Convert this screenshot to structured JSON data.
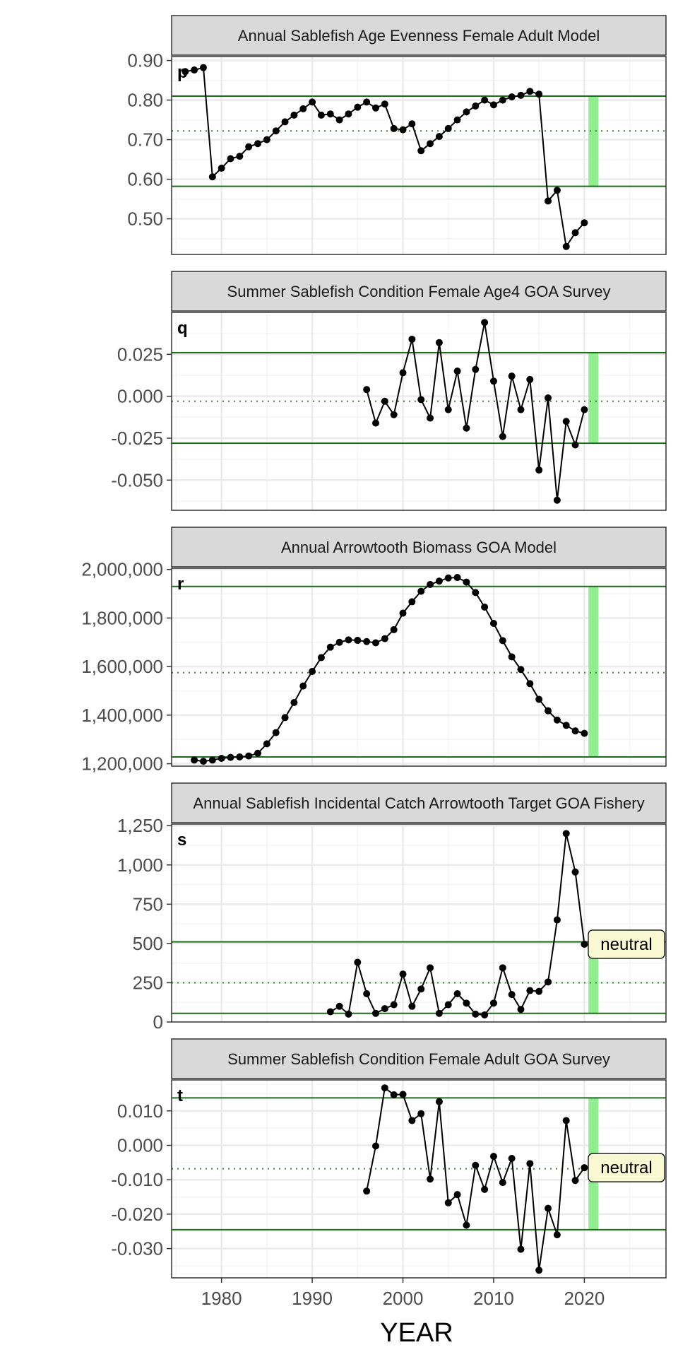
{
  "figure": {
    "xlabel": "YEAR"
  },
  "chart_data": [
    {
      "type": "line",
      "title": "Annual Sablefish Age Evenness Female Adult Model",
      "tag": "p",
      "xlim": [
        1974.5,
        2029
      ],
      "xticks": [
        1980,
        1990,
        2000,
        2010,
        2020
      ],
      "ylim": [
        0.41,
        0.91
      ],
      "yticks": [
        0.5,
        0.6,
        0.7,
        0.8,
        0.9
      ],
      "ytick_labels": [
        "0.50",
        "0.60",
        "0.70",
        "0.80",
        "0.90"
      ],
      "hlines": {
        "upper": 0.81,
        "mean": 0.722,
        "lower": 0.582
      },
      "highlight_year": 2021,
      "highlight_range": [
        0.582,
        0.81
      ],
      "badge": "",
      "x": [
        1976,
        1977,
        1978,
        1979,
        1980,
        1981,
        1982,
        1983,
        1984,
        1985,
        1986,
        1987,
        1988,
        1989,
        1990,
        1991,
        1992,
        1993,
        1994,
        1995,
        1996,
        1997,
        1998,
        1999,
        2000,
        2001,
        2002,
        2003,
        2004,
        2005,
        2006,
        2007,
        2008,
        2009,
        2010,
        2011,
        2012,
        2013,
        2014,
        2015,
        2016,
        2017,
        2018,
        2019,
        2020
      ],
      "y": [
        0.872,
        0.876,
        0.882,
        0.606,
        0.628,
        0.652,
        0.658,
        0.682,
        0.69,
        0.7,
        0.722,
        0.745,
        0.762,
        0.778,
        0.795,
        0.762,
        0.765,
        0.75,
        0.765,
        0.782,
        0.795,
        0.78,
        0.79,
        0.728,
        0.725,
        0.74,
        0.672,
        0.69,
        0.708,
        0.728,
        0.75,
        0.77,
        0.785,
        0.8,
        0.788,
        0.8,
        0.808,
        0.812,
        0.822,
        0.815,
        0.545,
        0.572,
        0.43,
        0.465,
        0.49
      ]
    },
    {
      "type": "line",
      "title": "Summer Sablefish Condition Female Age4 GOA Survey",
      "tag": "q",
      "xlim": [
        1974.5,
        2029
      ],
      "xticks": [
        1980,
        1990,
        2000,
        2010,
        2020
      ],
      "ylim": [
        -0.068,
        0.05
      ],
      "yticks": [
        -0.05,
        -0.025,
        0,
        0.025
      ],
      "ytick_labels": [
        "-0.050",
        "-0.025",
        "0.000",
        "0.025"
      ],
      "hlines": {
        "upper": 0.026,
        "mean": -0.003,
        "lower": -0.028
      },
      "highlight_year": 2021,
      "highlight_range": [
        -0.028,
        0.026
      ],
      "badge": "",
      "x": [
        1996,
        1997,
        1998,
        1999,
        2000,
        2001,
        2002,
        2003,
        2004,
        2005,
        2006,
        2007,
        2008,
        2009,
        2010,
        2011,
        2012,
        2013,
        2014,
        2015,
        2016,
        2017,
        2018,
        2019,
        2020
      ],
      "y": [
        0.004,
        -0.016,
        -0.003,
        -0.011,
        0.014,
        0.034,
        -0.002,
        -0.013,
        0.032,
        -0.008,
        0.015,
        -0.019,
        0.016,
        0.044,
        0.009,
        -0.024,
        0.012,
        -0.008,
        0.01,
        -0.044,
        -0.001,
        -0.062,
        -0.015,
        -0.029,
        -0.008
      ]
    },
    {
      "type": "line",
      "title": "Annual Arrowtooth Biomass GOA Model",
      "tag": "r",
      "xlim": [
        1974.5,
        2029
      ],
      "xticks": [
        1980,
        1990,
        2000,
        2010,
        2020
      ],
      "ylim": [
        1190000,
        2005000
      ],
      "yticks": [
        1200000,
        1400000,
        1600000,
        1800000,
        2000000
      ],
      "ytick_labels": [
        "1,200,000",
        "1,400,000",
        "1,600,000",
        "1,800,000",
        "2,000,000"
      ],
      "hlines": {
        "upper": 1930000,
        "mean": 1575000,
        "lower": 1228000
      },
      "highlight_year": 2021,
      "highlight_range": [
        1228000,
        1930000
      ],
      "badge": "",
      "x": [
        1977,
        1978,
        1979,
        1980,
        1981,
        1982,
        1983,
        1984,
        1985,
        1986,
        1987,
        1988,
        1989,
        1990,
        1991,
        1992,
        1993,
        1994,
        1995,
        1996,
        1997,
        1998,
        1999,
        2000,
        2001,
        2002,
        2003,
        2004,
        2005,
        2006,
        2007,
        2008,
        2009,
        2010,
        2011,
        2012,
        2013,
        2014,
        2015,
        2016,
        2017,
        2018,
        2019,
        2020
      ],
      "y": [
        1215000,
        1210000,
        1215000,
        1222000,
        1226000,
        1228000,
        1232000,
        1243000,
        1282000,
        1328000,
        1390000,
        1452000,
        1520000,
        1580000,
        1637000,
        1680000,
        1700000,
        1710000,
        1708000,
        1703000,
        1698000,
        1715000,
        1752000,
        1820000,
        1867000,
        1910000,
        1938000,
        1952000,
        1965000,
        1967000,
        1948000,
        1905000,
        1845000,
        1778000,
        1707000,
        1640000,
        1588000,
        1530000,
        1465000,
        1418000,
        1380000,
        1358000,
        1335000,
        1325000
      ]
    },
    {
      "type": "line",
      "title": "Annual Sablefish Incidental Catch Arrowtooth Target GOA Fishery",
      "tag": "s",
      "xlim": [
        1974.5,
        2029
      ],
      "xticks": [
        1980,
        1990,
        2000,
        2010,
        2020
      ],
      "ylim": [
        0,
        1260
      ],
      "yticks": [
        0,
        250,
        500,
        750,
        1000,
        1250
      ],
      "ytick_labels": [
        "0",
        "250",
        "500",
        "750",
        "1,000",
        "1,250"
      ],
      "hlines": {
        "upper": 510,
        "mean": 250,
        "lower": 55
      },
      "highlight_year": 2021,
      "highlight_range": [
        55,
        510
      ],
      "badge": "neutral",
      "x": [
        1992,
        1993,
        1994,
        1995,
        1996,
        1997,
        1998,
        1999,
        2000,
        2001,
        2002,
        2003,
        2004,
        2005,
        2006,
        2007,
        2008,
        2009,
        2010,
        2011,
        2012,
        2013,
        2014,
        2015,
        2016,
        2017,
        2018,
        2019,
        2020
      ],
      "y": [
        65,
        100,
        50,
        380,
        180,
        55,
        85,
        110,
        305,
        100,
        210,
        345,
        55,
        110,
        180,
        120,
        50,
        45,
        120,
        345,
        175,
        80,
        200,
        195,
        255,
        650,
        1200,
        955,
        495
      ]
    },
    {
      "type": "line",
      "title": "Summer Sablefish Condition Female Adult GOA Survey",
      "tag": "t",
      "xlim": [
        1974.5,
        2029
      ],
      "xticks": [
        1980,
        1990,
        2000,
        2010,
        2020
      ],
      "ylim": [
        -0.0385,
        0.019
      ],
      "yticks": [
        -0.03,
        -0.02,
        -0.01,
        0,
        0.01
      ],
      "ytick_labels": [
        "-0.030",
        "-0.020",
        "-0.010",
        "0.000",
        "0.010"
      ],
      "hlines": {
        "upper": 0.0138,
        "mean": -0.0068,
        "lower": -0.0245
      },
      "highlight_year": 2021,
      "highlight_range": [
        -0.0245,
        0.0138
      ],
      "badge": "neutral",
      "x": [
        1996,
        1997,
        1998,
        1999,
        2000,
        2001,
        2002,
        2003,
        2004,
        2005,
        2006,
        2007,
        2008,
        2009,
        2010,
        2011,
        2012,
        2013,
        2014,
        2015,
        2016,
        2017,
        2018,
        2019,
        2020
      ],
      "y": [
        -0.0133,
        -0.0002,
        0.0167,
        0.0147,
        0.0148,
        0.0072,
        0.0092,
        -0.0098,
        0.0127,
        -0.0167,
        -0.0143,
        -0.0232,
        -0.0058,
        -0.0128,
        -0.0032,
        -0.0108,
        -0.0038,
        -0.0302,
        -0.0053,
        -0.0363,
        -0.0183,
        -0.026,
        0.0072,
        -0.0102,
        -0.0065
      ]
    }
  ],
  "colors": {
    "line": "#000000",
    "hline": "#1a6e1a",
    "mean_line": "#2e8b2e",
    "highlight": "#90ee90",
    "strip_bg": "#d9d9d9",
    "panel_border": "#333333",
    "grid_major": "#ebebeb",
    "grid_minor": "#f5f5f5",
    "badge_bg": "#fafad2"
  }
}
